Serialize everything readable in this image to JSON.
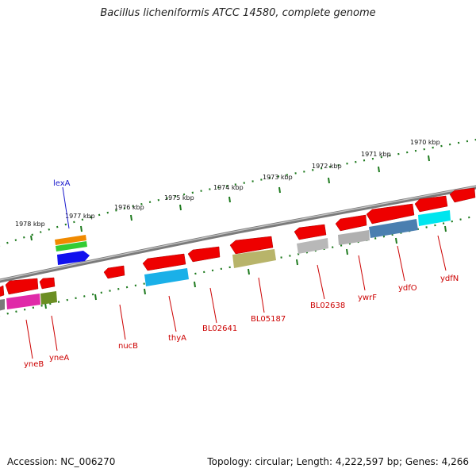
{
  "title": "Bacillus licheniformis ATCC 14580, complete genome",
  "accession": "Accession: NC_006270",
  "topology": "Topology: circular; Length: 4,222,597 bp; Genes: 4,266",
  "colors": {
    "backbone": "#7a7a7a",
    "tick": "#1e7a1e",
    "gene_label": "#cc0000",
    "highlight_label": "#1a1acc",
    "cds": "#ee0000"
  },
  "scale_labels": [
    "1978 kbp",
    "1977 kbp",
    "1976 kbp",
    "1975 kbp",
    "1974 kbp",
    "1973 kbp",
    "1972 kbp",
    "1971 kbp",
    "1970 kbp"
  ],
  "gene_labels": [
    {
      "text": "lexA",
      "kind": "highlight"
    },
    {
      "text": "yneB",
      "kind": "gene"
    },
    {
      "text": "yneA",
      "kind": "gene"
    },
    {
      "text": "nucB",
      "kind": "gene"
    },
    {
      "text": "thyA",
      "kind": "gene"
    },
    {
      "text": "BL02641",
      "kind": "gene"
    },
    {
      "text": "BL05187",
      "kind": "gene"
    },
    {
      "text": "BL02638",
      "kind": "gene"
    },
    {
      "text": "ywrF",
      "kind": "gene"
    },
    {
      "text": "ydfO",
      "kind": "gene"
    },
    {
      "text": "ydfN",
      "kind": "gene"
    }
  ]
}
